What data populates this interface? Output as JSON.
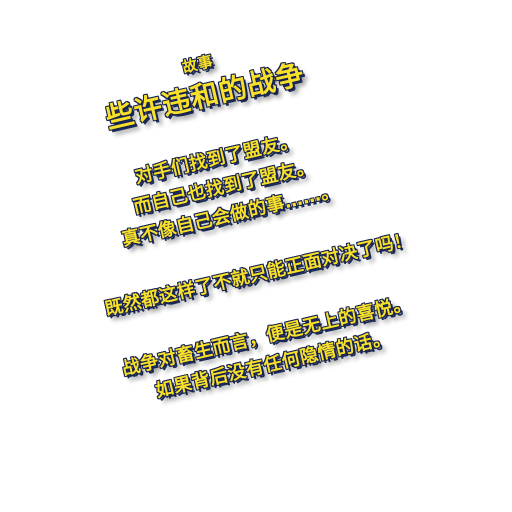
{
  "story": {
    "label": "故事",
    "title": "些许违和的战争",
    "lines": [
      "对手们找到了盟友。",
      "而自己也找到了盟友。",
      "真不像自己会做的事……。",
      "既然都这样了不就只能正面对决了吗！",
      "战争对畜生而言，便是无上的喜悦。",
      "如果背后没有任何隐情的话。"
    ]
  },
  "colors": {
    "text_fill": "#f7df2a",
    "text_outline": "#16224f",
    "background": "#ffffff"
  }
}
